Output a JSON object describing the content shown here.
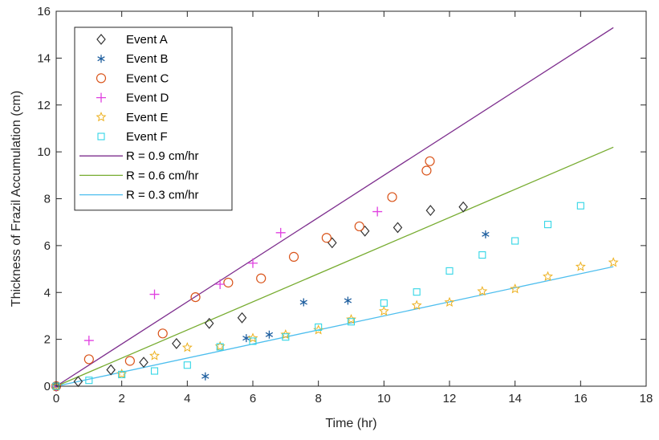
{
  "chart_data": {
    "type": "scatter",
    "title": "",
    "xlabel": "Time (hr)",
    "ylabel": "Thickness of Frazil Accumulation (cm)",
    "xlim": [
      0,
      18
    ],
    "ylim": [
      0,
      16
    ],
    "xticks": [
      0,
      2,
      4,
      6,
      8,
      10,
      12,
      14,
      16,
      18
    ],
    "yticks": [
      0,
      2,
      4,
      6,
      8,
      10,
      12,
      14,
      16
    ],
    "grid": false,
    "legend_position": "top-left",
    "series": [
      {
        "name": "Event A",
        "marker": "diamond",
        "color": "#333333",
        "x": [
          0,
          0.67,
          1.67,
          2.67,
          3.67,
          4.67,
          5.67,
          8.42,
          9.42,
          10.42,
          11.42,
          12.42
        ],
        "y": [
          0,
          0.2,
          0.7,
          1.02,
          1.82,
          2.68,
          2.92,
          6.12,
          6.62,
          6.77,
          7.5,
          7.65
        ]
      },
      {
        "name": "Event B",
        "marker": "asterisk",
        "color": "#1f5f9f",
        "x": [
          0,
          4.55,
          5.8,
          6.5,
          7.55,
          8.9,
          13.1
        ],
        "y": [
          0,
          0.42,
          2.05,
          2.2,
          3.58,
          3.65,
          6.48
        ]
      },
      {
        "name": "Event C",
        "marker": "circle",
        "color": "#d95319",
        "x": [
          0,
          1.0,
          2.25,
          3.25,
          4.25,
          5.25,
          6.25,
          7.25,
          8.25,
          9.25,
          10.25,
          11.3,
          11.4
        ],
        "y": [
          0,
          1.15,
          1.08,
          2.25,
          3.8,
          4.42,
          4.6,
          5.52,
          6.33,
          6.82,
          8.07,
          9.2,
          9.6
        ]
      },
      {
        "name": "Event D",
        "marker": "plus",
        "color": "#e040e0",
        "x": [
          0,
          1.0,
          3.0,
          5.0,
          6.0,
          6.85,
          9.8
        ],
        "y": [
          0,
          1.95,
          3.92,
          4.35,
          5.25,
          6.55,
          7.45
        ]
      },
      {
        "name": "Event E",
        "marker": "star",
        "color": "#edb120",
        "x": [
          0,
          2.0,
          3.0,
          4.0,
          5.0,
          6.0,
          7.0,
          8.0,
          9.0,
          10.0,
          11.0,
          12.0,
          13.0,
          14.0,
          15.0,
          16.0,
          17.0
        ],
        "y": [
          0,
          0.52,
          1.3,
          1.65,
          1.7,
          2.05,
          2.2,
          2.4,
          2.85,
          3.2,
          3.45,
          3.58,
          4.05,
          4.15,
          4.68,
          5.1,
          5.28
        ]
      },
      {
        "name": "Event F",
        "marker": "square",
        "color": "#33d6e6",
        "x": [
          0,
          1.0,
          2.0,
          3.0,
          4.0,
          5.0,
          6.0,
          7.0,
          8.0,
          9.0,
          10.0,
          11.0,
          12.0,
          13.0,
          14.0,
          15.0,
          16.0
        ],
        "y": [
          0,
          0.25,
          0.5,
          0.65,
          0.9,
          1.68,
          1.92,
          2.1,
          2.52,
          2.75,
          3.55,
          4.02,
          4.92,
          5.6,
          6.2,
          6.9,
          7.7
        ]
      }
    ],
    "lines": [
      {
        "name": "R = 0.9 cm/hr",
        "slope": 0.9,
        "x_range": [
          0,
          17
        ],
        "color": "#7e2f8e"
      },
      {
        "name": "R = 0.6 cm/hr",
        "slope": 0.6,
        "x_range": [
          0,
          17
        ],
        "color": "#77ac30"
      },
      {
        "name": "R = 0.3 cm/hr",
        "slope": 0.3,
        "x_range": [
          0,
          17
        ],
        "color": "#4dbeee"
      }
    ]
  }
}
